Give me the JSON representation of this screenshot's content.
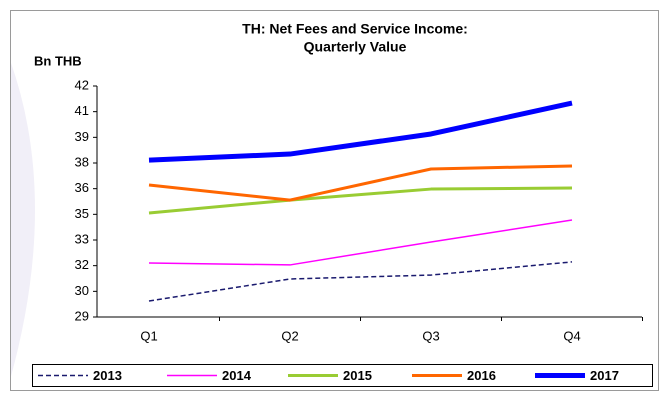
{
  "chart_data": {
    "type": "line",
    "title": [
      "TH: Net Fees and Service Income:",
      "Quarterly Value"
    ],
    "y_label": "Bn THB",
    "categories": [
      "Q1",
      "Q2",
      "Q3",
      "Q4"
    ],
    "series": [
      {
        "name": "2013",
        "color": "#1a1a6e",
        "values": [
          29.9,
          31.14,
          31.36,
          32.1
        ]
      },
      {
        "name": "2014",
        "color": "#ff00ff",
        "values": [
          32.04,
          31.93,
          33.22,
          34.46
        ]
      },
      {
        "name": "2015",
        "color": "#99cc33",
        "values": [
          34.85,
          35.58,
          36.2,
          36.26
        ]
      },
      {
        "name": "2016",
        "color": "#ff6600",
        "values": [
          36.43,
          35.58,
          37.33,
          37.5
        ]
      },
      {
        "name": "2017",
        "color": "#0000ff",
        "values": [
          37.83,
          38.17,
          39.3,
          41.04
        ]
      }
    ],
    "ylim": [
      29,
      42
    ],
    "yticks": [
      {
        "value": 29,
        "label": "29"
      },
      {
        "value": 30.444,
        "label": "30"
      },
      {
        "value": 31.889,
        "label": "32"
      },
      {
        "value": 33.333,
        "label": "33"
      },
      {
        "value": 34.778,
        "label": "35"
      },
      {
        "value": 36.222,
        "label": "36"
      },
      {
        "value": 37.667,
        "label": "38"
      },
      {
        "value": 39.111,
        "label": "39"
      },
      {
        "value": 40.556,
        "label": "41"
      },
      {
        "value": 42,
        "label": "42"
      }
    ],
    "grid": false,
    "legend": "bottom"
  }
}
